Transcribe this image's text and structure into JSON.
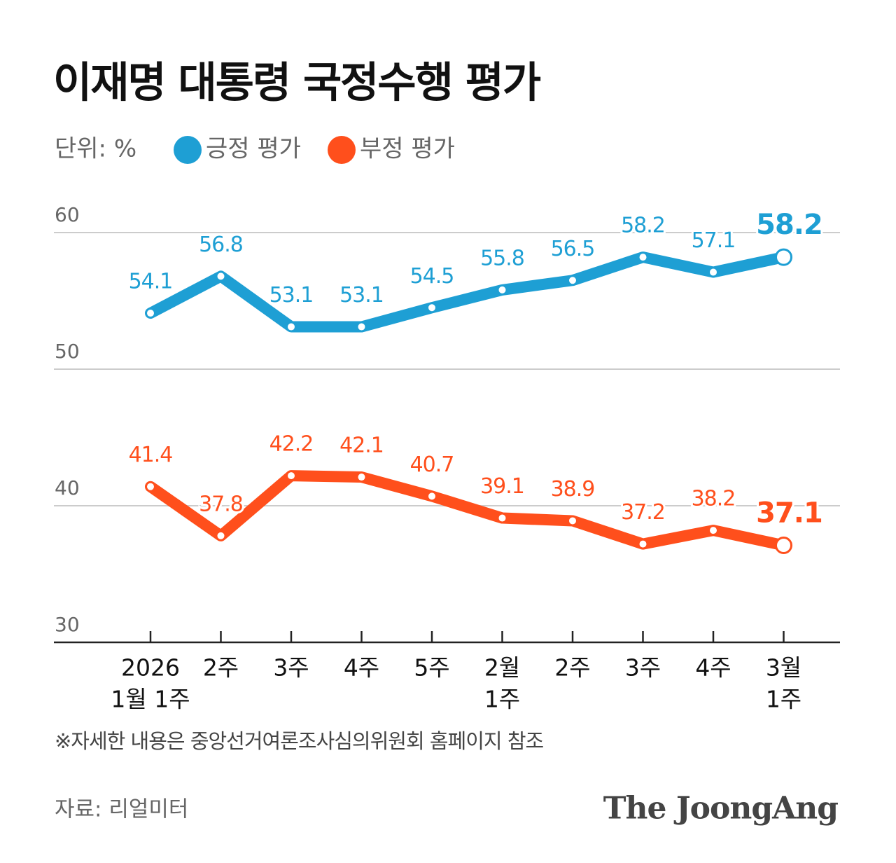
{
  "chart_data": {
    "type": "line",
    "title": "이재명 대통령 국정수행 평가",
    "unit": "단위: %",
    "categories": [
      [
        "2026",
        "1월 1주"
      ],
      [
        "2주"
      ],
      [
        "3주"
      ],
      [
        "4주"
      ],
      [
        "5주"
      ],
      [
        "2월",
        "1주"
      ],
      [
        "2주"
      ],
      [
        "3주"
      ],
      [
        "4주"
      ],
      [
        "3월",
        "1주"
      ]
    ],
    "series": [
      {
        "name": "긍정 평가",
        "color": "#1e9fd4",
        "values": [
          54.1,
          56.8,
          53.1,
          53.1,
          54.5,
          55.8,
          56.5,
          58.2,
          57.1,
          58.2
        ]
      },
      {
        "name": "부정 평가",
        "color": "#ff4f1c",
        "values": [
          41.4,
          37.8,
          42.2,
          42.1,
          40.7,
          39.1,
          38.9,
          37.2,
          38.2,
          37.1
        ]
      }
    ],
    "ylim": [
      30,
      60
    ],
    "yticks": [
      30,
      40,
      50,
      60
    ],
    "grid": true,
    "emphasize_last": true,
    "note": "※자세한 내용은 중앙선거여론조사심의위원회 홈페이지 참조",
    "source": "자료: 리얼미터",
    "brand": "The JoongAng"
  }
}
